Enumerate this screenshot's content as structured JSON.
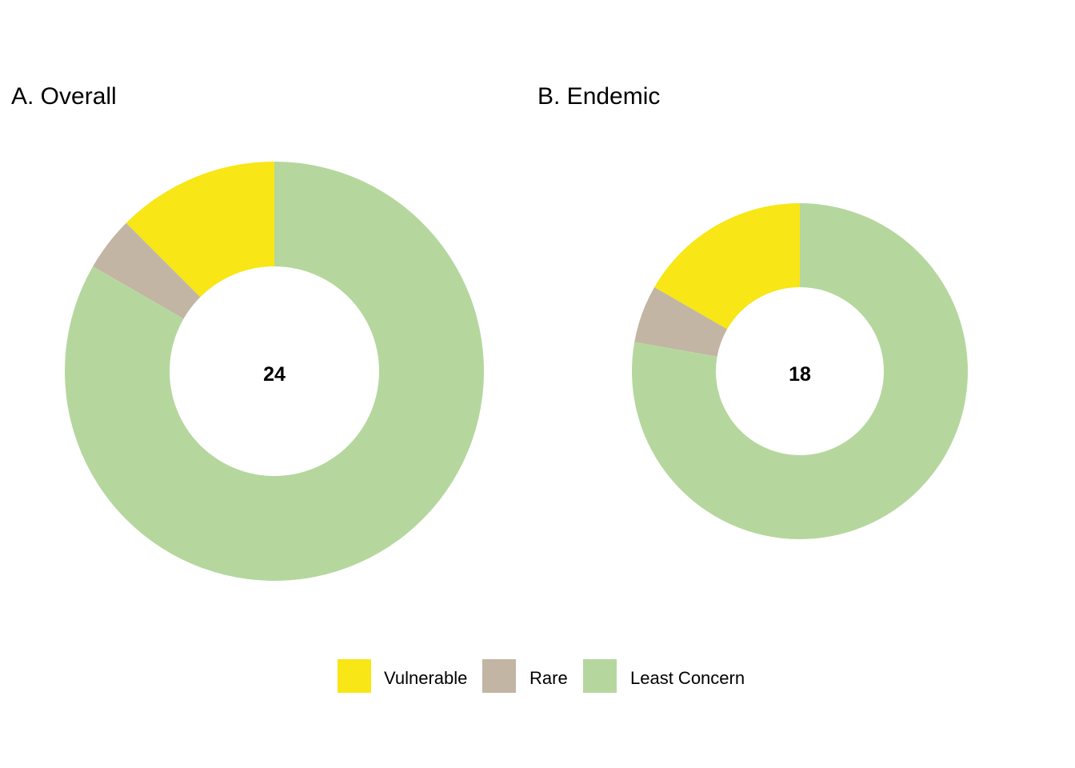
{
  "legend": {
    "items": [
      {
        "label": "Vulnerable",
        "color": "#f8e616"
      },
      {
        "label": "Rare",
        "color": "#c2b5a4"
      },
      {
        "label": "Least Concern",
        "color": "#b5d79e"
      }
    ]
  },
  "chart_data": [
    {
      "type": "pie",
      "donut": true,
      "title": "A. Overall",
      "center_label": "24",
      "categories": [
        "Vulnerable",
        "Rare",
        "Least Concern"
      ],
      "values": [
        3,
        1,
        20
      ],
      "colors": [
        "#f8e616",
        "#c2b5a4",
        "#b5d79e"
      ],
      "start": "top",
      "direction": "counterclockwise"
    },
    {
      "type": "pie",
      "donut": true,
      "title": "B. Endemic",
      "center_label": "18",
      "categories": [
        "Vulnerable",
        "Rare",
        "Least Concern"
      ],
      "values": [
        3,
        1,
        14
      ],
      "colors": [
        "#f8e616",
        "#c2b5a4",
        "#b5d79e"
      ],
      "start": "top",
      "direction": "counterclockwise"
    }
  ]
}
